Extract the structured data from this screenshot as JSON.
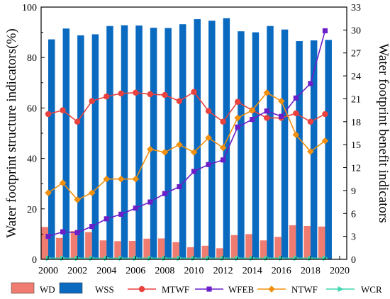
{
  "chart_data": {
    "type": "bar",
    "categories": [
      2000,
      2001,
      2002,
      2003,
      2004,
      2005,
      2006,
      2007,
      2008,
      2009,
      2010,
      2011,
      2012,
      2013,
      2014,
      2015,
      2016,
      2017,
      2018,
      2019
    ],
    "x_ticks": [
      "2000",
      "2002",
      "2004",
      "2006",
      "2008",
      "2010",
      "2012",
      "2014",
      "2016",
      "2018",
      "2020"
    ],
    "xlim": [
      2000,
      2020
    ],
    "ylabel": "Water footprint structure indicators(%)",
    "ylim": [
      0,
      100
    ],
    "y_ticks": [
      "0",
      "20",
      "40",
      "60",
      "80",
      "100"
    ],
    "y2label": "Water footprint benefit indicators",
    "y2lim": [
      0,
      33
    ],
    "y2_ticks": [
      "0",
      "3",
      "6",
      "9",
      "12",
      "15",
      "18",
      "21",
      "24",
      "27",
      "30",
      "33"
    ],
    "legend_position": "bottom",
    "series": [
      {
        "name": "WD",
        "kind": "bar",
        "axis": "left",
        "color": "#f07b70",
        "values": [
          12.8,
          8.5,
          11.2,
          10.8,
          7.5,
          7.2,
          7.3,
          8.2,
          8.3,
          6.8,
          4.8,
          5.4,
          4.4,
          9.6,
          10.0,
          7.5,
          8.9,
          13.5,
          13.2,
          13.0
        ]
      },
      {
        "name": "WSS",
        "kind": "bar",
        "axis": "left",
        "color": "#0a6ac0",
        "values": [
          87.2,
          91.5,
          88.8,
          89.2,
          92.5,
          92.8,
          92.7,
          91.8,
          91.7,
          93.2,
          95.2,
          94.6,
          95.6,
          90.4,
          90.0,
          92.5,
          91.1,
          86.5,
          86.8,
          87.0
        ]
      },
      {
        "name": "MTWF",
        "kind": "line",
        "axis": "right",
        "color": "#e8413e",
        "marker": "circle",
        "values": [
          19.0,
          19.5,
          18.0,
          20.7,
          21.3,
          21.7,
          21.8,
          21.6,
          21.5,
          20.7,
          21.9,
          19.4,
          18.0,
          20.6,
          19.5,
          18.5,
          18.5,
          19.1,
          18.0,
          19.0
        ]
      },
      {
        "name": "WFEB",
        "kind": "line",
        "axis": "right",
        "color": "#6a1fc8",
        "marker": "square",
        "values": [
          3.0,
          3.6,
          3.5,
          4.3,
          5.3,
          5.9,
          6.7,
          7.5,
          8.6,
          9.5,
          11.5,
          12.4,
          13.0,
          17.3,
          18.3,
          19.4,
          18.7,
          21.1,
          23.0,
          29.9
        ]
      },
      {
        "name": "NTWF",
        "kind": "line",
        "axis": "right",
        "color": "#f0900e",
        "marker": "diamond",
        "values": [
          8.7,
          10.0,
          7.8,
          8.7,
          10.5,
          10.5,
          10.5,
          14.4,
          14.0,
          15.0,
          14.0,
          15.9,
          14.6,
          18.5,
          19.5,
          21.8,
          20.7,
          16.3,
          14.1,
          15.5
        ]
      },
      {
        "name": "WCR",
        "kind": "line",
        "axis": "right",
        "color": "#3cd6b0",
        "marker": "triangle",
        "values": [
          0.15,
          0.15,
          0.15,
          0.15,
          0.15,
          0.15,
          0.15,
          0.15,
          0.15,
          0.15,
          0.15,
          0.15,
          0.15,
          0.15,
          0.15,
          0.15,
          0.15,
          0.15,
          0.15,
          0.15
        ]
      }
    ]
  }
}
